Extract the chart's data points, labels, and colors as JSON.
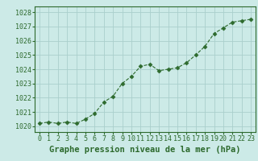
{
  "x": [
    0,
    1,
    2,
    3,
    4,
    5,
    6,
    7,
    8,
    9,
    10,
    11,
    12,
    13,
    14,
    15,
    16,
    17,
    18,
    19,
    20,
    21,
    22,
    23
  ],
  "y": [
    1020.2,
    1020.3,
    1020.2,
    1020.3,
    1020.2,
    1020.5,
    1020.9,
    1021.7,
    1022.1,
    1023.0,
    1023.5,
    1024.2,
    1024.35,
    1023.9,
    1024.0,
    1024.1,
    1024.45,
    1025.0,
    1025.6,
    1026.5,
    1026.9,
    1027.3,
    1027.4,
    1027.5
  ],
  "line_color": "#2d6a2d",
  "marker": "D",
  "marker_size": 2.5,
  "bg_color": "#cceae7",
  "grid_color": "#aacfcc",
  "title": "Graphe pression niveau de la mer (hPa)",
  "ylim_min": 1019.6,
  "ylim_max": 1028.4,
  "title_fontsize": 7.5,
  "tick_fontsize": 6.0,
  "border_color": "#2d6a2d"
}
